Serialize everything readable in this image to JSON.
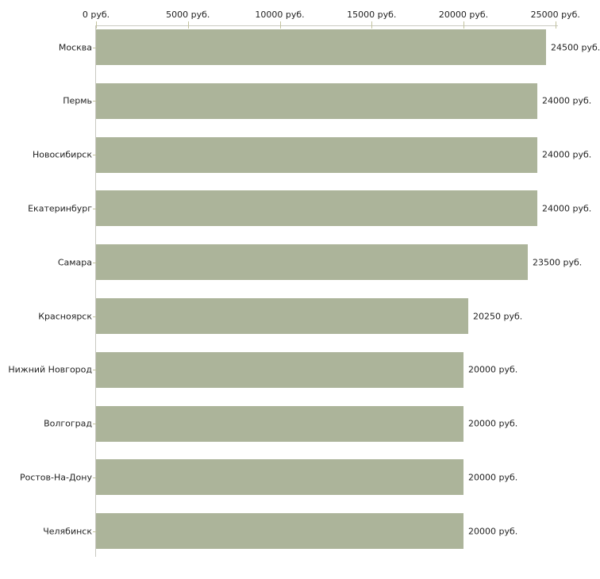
{
  "chart_data": {
    "type": "bar",
    "orientation": "horizontal",
    "title": "",
    "xlabel": "",
    "ylabel": "",
    "unit": "руб.",
    "xlim": [
      0,
      25000
    ],
    "grid": false,
    "legend": false,
    "categories": [
      "Москва",
      "Пермь",
      "Новосибирск",
      "Екатеринбург",
      "Самара",
      "Красноярск",
      "Нижний Новгород",
      "Волгоград",
      "Ростов-На-Дону",
      "Челябинск"
    ],
    "values": [
      24500,
      24000,
      24000,
      24000,
      23500,
      20250,
      20000,
      20000,
      20000,
      20000
    ],
    "value_labels": [
      "24500 руб.",
      "24000 руб.",
      "24000 руб.",
      "24000 руб.",
      "23500 руб.",
      "20250 руб.",
      "20000 руб.",
      "20000 руб.",
      "20000 руб.",
      "20000 руб."
    ],
    "x_ticks": [
      {
        "label": "0 руб.",
        "value": 0
      },
      {
        "label": "5000 руб.",
        "value": 5000
      },
      {
        "label": "10000 руб.",
        "value": 10000
      },
      {
        "label": "15000 руб.",
        "value": 15000
      },
      {
        "label": "20000 руб.",
        "value": 20000
      },
      {
        "label": "25000 руб.",
        "value": 25000
      }
    ],
    "colors": {
      "bar": "#acb49a",
      "axis_line": "#c9c9c1",
      "tick": "#c2c29e",
      "text": "#222222",
      "background": "#ffffff"
    }
  }
}
